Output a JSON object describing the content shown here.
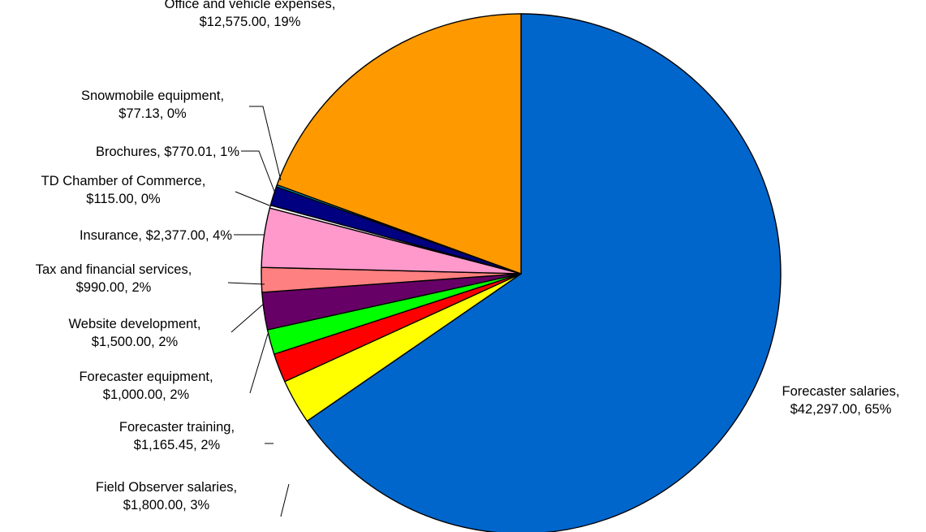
{
  "chart_data": {
    "type": "pie",
    "title": "",
    "start_angle_deg": 0,
    "direction": "clockwise",
    "legend": "none",
    "slices": [
      {
        "label": "Forecaster salaries",
        "value": 42297.0,
        "value_text": "$42,297.00",
        "percent_text": "65%",
        "color": "#0066CC"
      },
      {
        "label": "Field Observer salaries",
        "value": 1800.0,
        "value_text": "$1,800.00",
        "percent_text": "3%",
        "color": "#FFFF00"
      },
      {
        "label": "Forecaster training",
        "value": 1165.45,
        "value_text": "$1,165.45",
        "percent_text": "2%",
        "color": "#FF0000"
      },
      {
        "label": "Forecaster equipment",
        "value": 1000.0,
        "value_text": "$1,000.00",
        "percent_text": "2%",
        "color": "#00FF00"
      },
      {
        "label": "Website development",
        "value": 1500.0,
        "value_text": "$1,500.00",
        "percent_text": "2%",
        "color": "#660066"
      },
      {
        "label": "Tax and financial services",
        "value": 990.0,
        "value_text": "$990.00",
        "percent_text": "2%",
        "color": "#FF8080"
      },
      {
        "label": "Insurance",
        "value": 2377.0,
        "value_text": "$2,377.00",
        "percent_text": "4%",
        "color": "#FF99CC"
      },
      {
        "label": "TD Chamber of Commerce",
        "value": 115.0,
        "value_text": "$115.00",
        "percent_text": "0%",
        "color": "#FFFFFF"
      },
      {
        "label": "Brochures",
        "value": 770.01,
        "value_text": "$770.01",
        "percent_text": "1%",
        "color": "#000080"
      },
      {
        "label": "Snowmobile equipment",
        "value": 77.13,
        "value_text": "$77.13",
        "percent_text": "0%",
        "color": "#00CCFF"
      },
      {
        "label": "Office and vehicle expenses",
        "value": 12575.0,
        "value_text": "$12,575.00",
        "percent_text": "19%",
        "color": "#FF9900"
      }
    ]
  }
}
